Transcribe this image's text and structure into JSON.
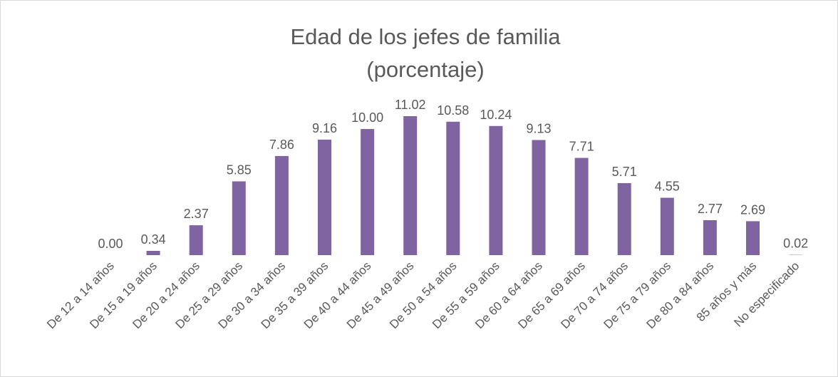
{
  "chart_data": {
    "type": "bar",
    "title": [
      "Edad de los jefes de familia",
      "(porcentaje)"
    ],
    "categories": [
      "De 12 a 14 años",
      "De 15 a 19 años",
      "De 20 a 24 años",
      "De 25 a 29 años",
      "De 30 a 34 años",
      "De 35 a 39 años",
      "De 40 a 44 años",
      "De 45 a 49 años",
      "De 50 a 54 años",
      "De 55 a 59 años",
      "De 60 a 64 años",
      "De 65 a 69 años",
      "De 70 a 74 años",
      "De 75 a 79 años",
      "De 80 a 84 años",
      "85 años y más",
      "No especificado"
    ],
    "values": [
      0,
      0.34,
      2.37,
      5.85,
      7.86,
      9.16,
      10,
      11.02,
      10.58,
      10.24,
      9.13,
      7.71,
      5.71,
      4.55,
      2.77,
      2.69,
      0.02
    ],
    "value_labels": [
      "0.00",
      "0.34",
      "2.37",
      "5.85",
      "7.86",
      "9.16",
      "10.00",
      "11.02",
      "10.58",
      "10.24",
      "9.13",
      "7.71",
      "5.71",
      "4.55",
      "2.77",
      "2.69",
      "0.02"
    ],
    "color": "#8064a2"
  }
}
